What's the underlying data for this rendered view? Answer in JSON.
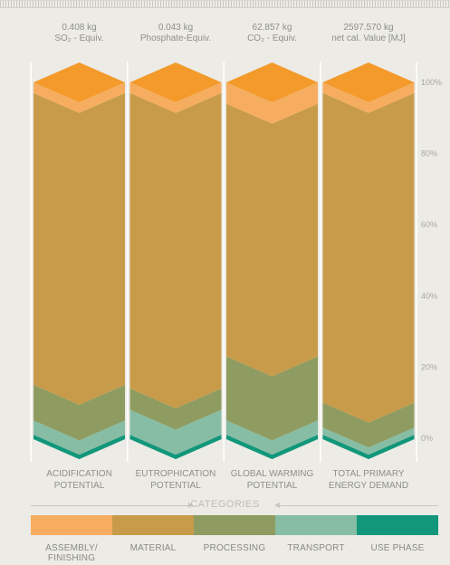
{
  "colors": {
    "assembly": "#f6ad5f",
    "material": "#c89b4a",
    "processing": "#8f9c61",
    "transport": "#86bda4",
    "use_phase": "#12977a",
    "cap_dark": "#f39a2a",
    "axis_text": "#8f8f8a",
    "background": "#ecebe6"
  },
  "chart_data": {
    "type": "bar",
    "stacked": true,
    "orientation": "vertical",
    "categories": [
      "ACIDIFICATION POTENTIAL",
      "EUTROPHICATION POTENTIAL",
      "GLOBAL WARMING POTENTIAL",
      "TOTAL PRIMARY ENERGY DEMAND"
    ],
    "headers": [
      {
        "value": "0.408 kg",
        "unit_line": "SO₂ - Equiv."
      },
      {
        "value": "0.043 kg",
        "unit_line": "Phosphate-Equiv."
      },
      {
        "value": "62.857 kg",
        "unit_line": "CO₂ - Equiv."
      },
      {
        "value": "2597.570 kg",
        "unit_line": "net cal. Value [MJ]"
      }
    ],
    "series": [
      {
        "name": "ASSEMBLY/ FINISHING",
        "values": [
          3,
          3,
          6,
          3
        ]
      },
      {
        "name": "MATERIAL",
        "values": [
          82,
          83,
          71,
          87
        ]
      },
      {
        "name": "PROCESSING",
        "values": [
          10,
          6,
          18,
          7
        ]
      },
      {
        "name": "TRANSPORT",
        "values": [
          4,
          7,
          4,
          2
        ]
      },
      {
        "name": "USE PHASE",
        "values": [
          1,
          1,
          1,
          1
        ]
      }
    ],
    "y_ticks": [
      "100%",
      "80%",
      "60%",
      "40%",
      "20%",
      "0%"
    ],
    "ylim": [
      0,
      100
    ],
    "legend_title": "CATEGORIES",
    "legend_placement": "bottom"
  }
}
